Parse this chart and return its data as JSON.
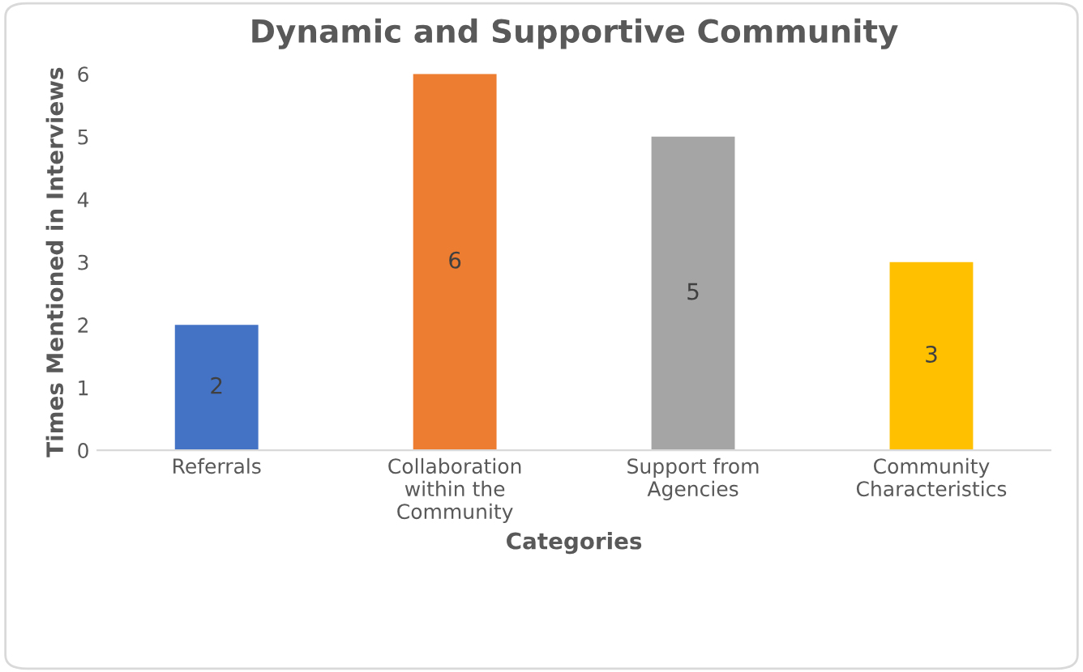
{
  "chart_data": {
    "type": "bar",
    "title": "Dynamic and Supportive Community",
    "xlabel": "Categories",
    "ylabel": "Times Mentioned in Interviews",
    "categories": [
      "Referrals",
      "Collaboration\nwithin the\nCommunity",
      "Support from\nAgencies",
      "Community\nCharacteristics"
    ],
    "values": [
      2,
      6,
      5,
      3
    ],
    "colors": [
      "#4472c4",
      "#ed7d31",
      "#a5a5a5",
      "#ffc000"
    ],
    "ylim": [
      0,
      6
    ],
    "yticks": [
      0,
      1,
      2,
      3,
      4,
      5,
      6
    ],
    "grid": false,
    "data_labels": true,
    "legend": false
  }
}
